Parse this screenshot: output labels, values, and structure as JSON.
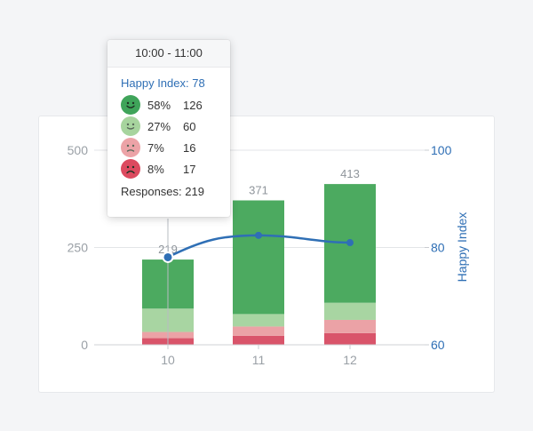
{
  "chart_data": {
    "type": "bar",
    "stacked": true,
    "categories": [
      "10",
      "11",
      "12"
    ],
    "totals": [
      219,
      371,
      413
    ],
    "series": [
      {
        "key": "very_sad",
        "values": [
          17,
          23,
          30
        ],
        "color": "#d9546a"
      },
      {
        "key": "sad",
        "values": [
          16,
          24,
          34
        ],
        "color": "#eba2a6"
      },
      {
        "key": "happy",
        "values": [
          60,
          32,
          44
        ],
        "color": "#a8d5a2"
      },
      {
        "key": "very_happy",
        "values": [
          126,
          292,
          305
        ],
        "color": "#4caa60"
      }
    ],
    "line": {
      "values": [
        78,
        82.5,
        81
      ],
      "color": "#2f6fb5"
    },
    "y_left": {
      "ticks": [
        "0",
        "250",
        "500"
      ],
      "range": [
        0,
        500
      ]
    },
    "y_right": {
      "ticks": [
        "60",
        "80",
        "100"
      ],
      "range": [
        60,
        100
      ],
      "label": "Happy Index"
    },
    "grid": true
  },
  "tooltip": {
    "time": "10:00 - 11:00",
    "happy_index": "Happy Index: 78",
    "rows": [
      {
        "face": "very-happy",
        "pct": "58%",
        "count": "126",
        "color": "#3fa45a"
      },
      {
        "face": "happy",
        "pct": "27%",
        "count": "60",
        "color": "#a7d49e"
      },
      {
        "face": "sad",
        "pct": "7%",
        "count": "16",
        "color": "#eca3a7"
      },
      {
        "face": "very-sad",
        "pct": "8%",
        "count": "17",
        "color": "#dc4a5f"
      }
    ],
    "responses": "Responses: 219"
  }
}
